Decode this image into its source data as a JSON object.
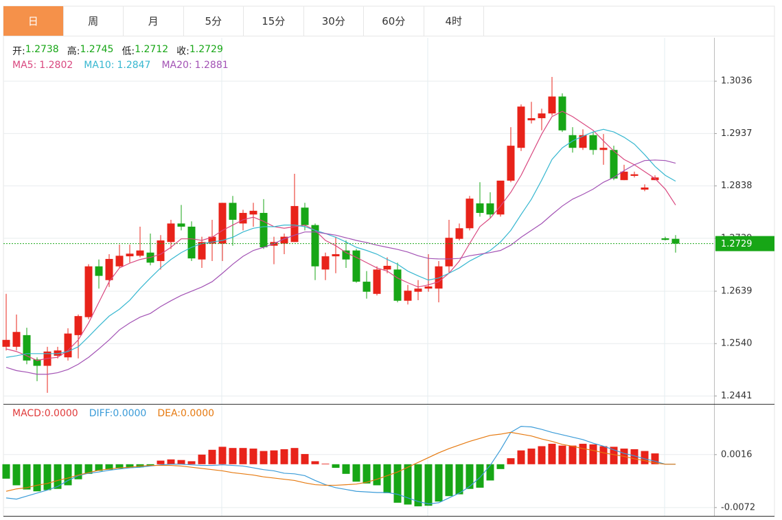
{
  "tabs": [
    "日",
    "周",
    "月",
    "5分",
    "15分",
    "30分",
    "60分",
    "4时"
  ],
  "active_tab": 0,
  "chart_data": [
    {
      "type": "candlestick",
      "ohlc_labels": [
        "开:",
        "高:",
        "低:",
        "收:"
      ],
      "up_color": "#e8231a",
      "down_color": "#17a616",
      "open": [
        1.2534,
        1.2534,
        1.2556,
        1.251,
        1.2498,
        1.2517,
        1.2514,
        1.2556,
        1.259,
        1.2686,
        1.266,
        1.2686,
        1.2705,
        1.2706,
        1.2712,
        1.2696,
        1.2732,
        1.2767,
        1.2761,
        1.2699,
        1.2729,
        1.2729,
        1.2806,
        1.2767,
        1.2784,
        1.2787,
        1.2725,
        1.2729,
        1.2732,
        1.2797,
        1.2764,
        1.268,
        1.2705,
        1.2716,
        1.2716,
        1.2657,
        1.2634,
        1.268,
        1.268,
        1.2621,
        1.2638,
        1.2644,
        1.2644,
        1.2686,
        1.2738,
        1.2758,
        1.2805,
        1.2805,
        1.2784,
        1.2848,
        1.291,
        1.2962,
        1.2966,
        1.2975,
        1.3007,
        1.2934,
        1.291,
        1.2934,
        1.2906,
        1.2906,
        1.2849,
        1.2857,
        1.2831,
        1.2849,
        1.2739,
        1.2738
      ],
      "high": [
        1.2634,
        1.2595,
        1.257,
        1.2514,
        1.2534,
        1.2534,
        1.2569,
        1.2595,
        1.269,
        1.2699,
        1.2709,
        1.2727,
        1.2727,
        1.2761,
        1.2748,
        1.2745,
        1.2774,
        1.2802,
        1.2771,
        1.2742,
        1.2774,
        1.2806,
        1.2819,
        1.2793,
        1.2806,
        1.2813,
        1.2742,
        1.2748,
        1.2861,
        1.2806,
        1.2767,
        1.2712,
        1.2742,
        1.2735,
        1.2719,
        1.2677,
        1.2686,
        1.2703,
        1.2693,
        1.2651,
        1.266,
        1.2709,
        1.2696,
        1.2774,
        1.2767,
        1.2819,
        1.2845,
        1.2826,
        1.2848,
        1.2949,
        1.2992,
        1.2997,
        1.2984,
        1.3044,
        1.3013,
        1.2949,
        1.2945,
        1.294,
        1.2936,
        1.2914,
        1.2878,
        1.2865,
        1.2841,
        1.2858,
        1.2742,
        1.2745
      ],
      "low": [
        1.2527,
        1.2527,
        1.2501,
        1.2469,
        1.2447,
        1.2512,
        1.2508,
        1.2512,
        1.2586,
        1.2644,
        1.2647,
        1.2683,
        1.2693,
        1.2703,
        1.2688,
        1.268,
        1.2719,
        1.2754,
        1.2696,
        1.2683,
        1.2696,
        1.2696,
        1.2725,
        1.2754,
        1.2761,
        1.2719,
        1.269,
        1.2709,
        1.2732,
        1.2754,
        1.266,
        1.266,
        1.2673,
        1.2683,
        1.2655,
        1.2625,
        1.2631,
        1.2673,
        1.2618,
        1.2614,
        1.2622,
        1.2638,
        1.2618,
        1.2673,
        1.2735,
        1.2754,
        1.278,
        1.2777,
        1.278,
        1.2845,
        1.2904,
        1.2956,
        1.2943,
        1.2971,
        1.294,
        1.2901,
        1.2906,
        1.2897,
        1.2878,
        1.2849,
        1.2849,
        1.2854,
        1.2828,
        1.2849,
        1.2735,
        1.2712
      ],
      "close": [
        1.2547,
        1.2562,
        1.2508,
        1.2498,
        1.2525,
        1.2527,
        1.2559,
        1.2592,
        1.2686,
        1.2668,
        1.27,
        1.2706,
        1.271,
        1.2716,
        1.2693,
        1.2735,
        1.2767,
        1.2761,
        1.2701,
        1.2732,
        1.2742,
        1.2806,
        1.2774,
        1.2787,
        1.2791,
        1.2722,
        1.2732,
        1.2742,
        1.28,
        1.2764,
        1.2686,
        1.2705,
        1.2709,
        1.2699,
        1.2657,
        1.2638,
        1.268,
        1.2687,
        1.2621,
        1.264,
        1.2644,
        1.2648,
        1.2686,
        1.274,
        1.2758,
        1.2814,
        1.2787,
        1.2784,
        1.2848,
        1.2914,
        1.2988,
        1.2966,
        1.2975,
        1.3007,
        1.2943,
        1.291,
        1.2934,
        1.2906,
        1.291,
        1.2852,
        1.2865,
        1.286,
        1.2835,
        1.2854,
        1.2736,
        1.2729
      ],
      "series": [
        {
          "name": "MA5:",
          "color": "#d9477f",
          "values": [
            1.253,
            1.2525,
            1.2517,
            1.2508,
            1.2512,
            1.2514,
            1.2527,
            1.2547,
            1.2579,
            1.2618,
            1.2657,
            1.2683,
            1.2692,
            1.2699,
            1.2703,
            1.2709,
            1.2722,
            1.2738,
            1.2738,
            1.2735,
            1.2741,
            1.2754,
            1.2764,
            1.2774,
            1.2779,
            1.2771,
            1.2761,
            1.2758,
            1.2761,
            1.2764,
            1.2754,
            1.2735,
            1.2725,
            1.2712,
            1.2703,
            1.2693,
            1.2683,
            1.2677,
            1.2664,
            1.2655,
            1.2647,
            1.2651,
            1.2657,
            1.2673,
            1.2696,
            1.2729,
            1.2761,
            1.2777,
            1.28,
            1.2826,
            1.2858,
            1.2897,
            1.2936,
            1.2969,
            1.2979,
            1.2969,
            1.2956,
            1.2943,
            1.2923,
            1.2904,
            1.2888,
            1.2878,
            1.2865,
            1.2852,
            1.2832,
            1.2802
          ]
        },
        {
          "name": "MA10:",
          "color": "#36b7d0",
          "values": [
            1.2514,
            1.2517,
            1.2521,
            1.2521,
            1.2521,
            1.2521,
            1.2525,
            1.2534,
            1.2553,
            1.2573,
            1.2592,
            1.2605,
            1.2622,
            1.2644,
            1.2664,
            1.2683,
            1.2699,
            1.2712,
            1.2722,
            1.2729,
            1.2732,
            1.2735,
            1.2741,
            1.2751,
            1.2758,
            1.2761,
            1.2761,
            1.2764,
            1.2764,
            1.2761,
            1.2754,
            1.2748,
            1.2741,
            1.2732,
            1.2722,
            1.2716,
            1.2709,
            1.2699,
            1.269,
            1.2677,
            1.2668,
            1.266,
            1.2664,
            1.2673,
            1.2683,
            1.2696,
            1.2706,
            1.2716,
            1.2732,
            1.2754,
            1.2784,
            1.2813,
            1.2849,
            1.2888,
            1.291,
            1.2923,
            1.2932,
            1.294,
            1.2945,
            1.294,
            1.293,
            1.2917,
            1.2897,
            1.2875,
            1.2858,
            1.2847
          ]
        },
        {
          "name": "MA20:",
          "color": "#a251b4",
          "values": [
            1.2495,
            1.2489,
            1.2486,
            1.2482,
            1.2482,
            1.2485,
            1.2491,
            1.2501,
            1.2514,
            1.253,
            1.2547,
            1.2566,
            1.2579,
            1.259,
            1.2597,
            1.261,
            1.2621,
            1.2631,
            1.2639,
            1.2647,
            1.2657,
            1.2673,
            1.269,
            1.2705,
            1.2716,
            1.2722,
            1.2729,
            1.2738,
            1.2745,
            1.2751,
            1.2751,
            1.2748,
            1.2745,
            1.274,
            1.2735,
            1.2731,
            1.2726,
            1.2722,
            1.2718,
            1.2713,
            1.2706,
            1.2701,
            1.27,
            1.27,
            1.2701,
            1.2706,
            1.2709,
            1.2712,
            1.2716,
            1.2726,
            1.2741,
            1.2754,
            1.2767,
            1.2784,
            1.28,
            1.2813,
            1.2822,
            1.2832,
            1.2845,
            1.2854,
            1.2867,
            1.2878,
            1.2886,
            1.2887,
            1.2886,
            1.2881
          ]
        }
      ],
      "ylim": [
        1.2426,
        1.3118
      ],
      "yticks": [
        1.2441,
        {
          "value": 1.254,
          "label": "1.2540"
        },
        1.2639,
        1.2739,
        1.2838,
        1.2937,
        1.3036
      ],
      "grid": true
    },
    {
      "type": "macd",
      "up_color": "#e8231a",
      "down_color": "#17a616",
      "series": [
        {
          "name": "MACD:",
          "color": "#e03a3a",
          "current_label": "0.0000",
          "values": [
            -0.0024,
            -0.0035,
            -0.0042,
            -0.0045,
            -0.0043,
            -0.0041,
            -0.0035,
            -0.0025,
            -0.0016,
            -0.0011,
            -0.0009,
            -0.0007,
            -0.0006,
            -0.0005,
            -0.0003,
            0.0006,
            0.0008,
            0.0007,
            0.0005,
            0.0016,
            0.0024,
            0.0029,
            0.0027,
            0.0027,
            0.0026,
            0.0022,
            0.0023,
            0.0025,
            0.0027,
            0.0017,
            0.0005,
            0.0001,
            -0.0006,
            -0.0016,
            -0.0029,
            -0.0032,
            -0.0035,
            -0.0048,
            -0.0064,
            -0.0067,
            -0.007,
            -0.0069,
            -0.0062,
            -0.0053,
            -0.005,
            -0.0041,
            -0.0039,
            -0.0027,
            -0.0008,
            0.001,
            0.0023,
            0.0026,
            0.003,
            0.0034,
            0.0031,
            0.0031,
            0.0034,
            0.0033,
            0.003,
            0.0029,
            0.0026,
            0.0025,
            0.0022,
            0.0018,
            0,
            0
          ]
        },
        {
          "name": "DIFF:",
          "color": "#3a9bd8",
          "current_label": "0.0000",
          "values": [
            -0.0056,
            -0.0058,
            -0.0053,
            -0.0048,
            -0.0043,
            -0.0037,
            -0.0027,
            -0.0019,
            -0.0015,
            -0.0013,
            -0.001,
            -0.0008,
            -0.0006,
            -0.0005,
            -0.0003,
            -0.0001,
            0,
            0,
            -0.0001,
            -0.0002,
            -0.0002,
            -0.0001,
            -0.0002,
            -0.0003,
            -0.0006,
            -0.0009,
            -0.0011,
            -0.0015,
            -0.0016,
            -0.0019,
            -0.0027,
            -0.0034,
            -0.0039,
            -0.0042,
            -0.0045,
            -0.0046,
            -0.0047,
            -0.0047,
            -0.005,
            -0.0056,
            -0.0062,
            -0.0066,
            -0.0064,
            -0.0056,
            -0.0048,
            -0.0037,
            -0.0022,
            -0.0002,
            0.0024,
            0.0053,
            0.0063,
            0.0062,
            0.0058,
            0.0053,
            0.0049,
            0.0045,
            0.0041,
            0.0035,
            0.003,
            0.0024,
            0.0018,
            0.0014,
            0.0009,
            0.0005,
            0,
            0
          ]
        },
        {
          "name": "DEA:",
          "color": "#e6790f",
          "current_label": "0.0000",
          "values": [
            -0.0045,
            -0.0041,
            -0.0039,
            -0.0035,
            -0.0032,
            -0.0027,
            -0.0023,
            -0.0018,
            -0.0014,
            -0.001,
            -0.0008,
            -0.0006,
            -0.0005,
            -0.0003,
            -0.0002,
            -0.0002,
            -0.0002,
            -0.0003,
            -0.0005,
            -0.0007,
            -0.0009,
            -0.0011,
            -0.0014,
            -0.0016,
            -0.0018,
            -0.0021,
            -0.0023,
            -0.0025,
            -0.0027,
            -0.0031,
            -0.0034,
            -0.0035,
            -0.0035,
            -0.0034,
            -0.0033,
            -0.003,
            -0.0025,
            -0.0019,
            -0.0013,
            -0.0005,
            0.0003,
            0.0011,
            0.0019,
            0.0026,
            0.0032,
            0.0038,
            0.0043,
            0.0048,
            0.005,
            0.0053,
            0.005,
            0.0047,
            0.0042,
            0.0038,
            0.0033,
            0.003,
            0.0026,
            0.0023,
            0.0019,
            0.0016,
            0.0013,
            0.0009,
            0.0006,
            0.0002,
            0,
            0
          ]
        }
      ],
      "ylim": [
        -0.0087,
        0.0098
      ],
      "yticks": [
        0.0016,
        -0.0072
      ],
      "grid": true
    }
  ]
}
